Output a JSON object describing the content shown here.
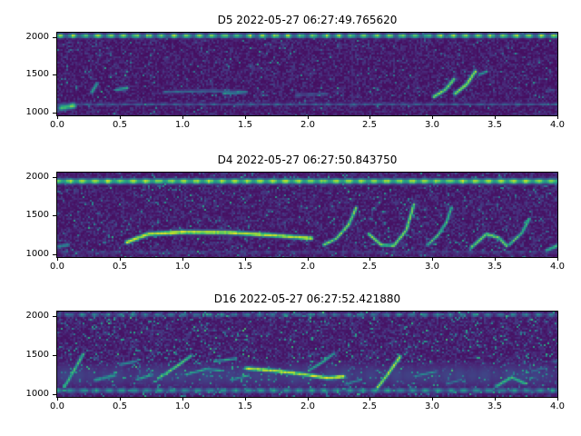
{
  "figure": {
    "background": "#ffffff",
    "colormap": "viridis",
    "palette": {
      "low": "#440154",
      "mid": "#21918c",
      "high": "#fde725"
    }
  },
  "chart_data": [
    {
      "type": "heatmap",
      "subtype": "spectrogram",
      "title": "D5 2022-05-27 06:27:49.765620",
      "xlabel": "",
      "ylabel": "",
      "xlim": [
        0.0,
        4.0
      ],
      "ylim": [
        960,
        2060
      ],
      "x_ticks": [
        0.0,
        0.5,
        1.0,
        1.5,
        2.0,
        2.5,
        3.0,
        3.5,
        4.0
      ],
      "x_tick_labels": [
        "0.0",
        "0.5",
        "1.0",
        "1.5",
        "2.0",
        "2.5",
        "3.0",
        "3.5",
        "4.0"
      ],
      "y_ticks": [
        2000,
        1500,
        1000
      ],
      "y_tick_labels": [
        "2000",
        "1500",
        "1000"
      ],
      "grid": false,
      "legend": false,
      "noise": {
        "base": 0.045,
        "speckle_prob": 0.05,
        "speckle_amp": 0.4,
        "seed": 11
      },
      "features": [
        {
          "points": [
            [
              0,
              2030
            ],
            [
              4,
              2030
            ]
          ],
          "sigma_hz": 22,
          "amp": 0.85,
          "dash": 0.55
        },
        {
          "points": [
            [
              0,
              1130
            ],
            [
              4,
              1130
            ]
          ],
          "sigma_hz": 12,
          "amp": 0.38,
          "dash": 0.45
        },
        {
          "points": [
            [
              0.02,
              1080
            ],
            [
              0.12,
              1110
            ]
          ],
          "sigma_hz": 30,
          "amp": 0.75,
          "dash": 0
        },
        {
          "points": [
            [
              0.27,
              1290
            ],
            [
              0.31,
              1400
            ]
          ],
          "sigma_hz": 18,
          "amp": 0.6,
          "dash": 0
        },
        {
          "points": [
            [
              0.47,
              1320
            ],
            [
              0.55,
              1345
            ]
          ],
          "sigma_hz": 18,
          "amp": 0.6,
          "dash": 0
        },
        {
          "points": [
            [
              0.85,
              1290
            ],
            [
              1.2,
              1305
            ],
            [
              1.5,
              1295
            ]
          ],
          "sigma_hz": 13,
          "amp": 0.42,
          "dash": 0.2
        },
        {
          "points": [
            [
              1.32,
              1270
            ],
            [
              1.5,
              1290
            ]
          ],
          "sigma_hz": 15,
          "amp": 0.55,
          "dash": 0
        },
        {
          "points": [
            [
              1.9,
              1255
            ],
            [
              2.15,
              1265
            ]
          ],
          "sigma_hz": 12,
          "amp": 0.35,
          "dash": 0.3
        },
        {
          "points": [
            [
              2.35,
              1100
            ],
            [
              2.35,
              1950
            ]
          ],
          "sigma_hz": 14,
          "amp": 0.2,
          "dash": 0.6
        },
        {
          "points": [
            [
              3.0,
              1230
            ],
            [
              3.09,
              1320
            ],
            [
              3.16,
              1460
            ]
          ],
          "sigma_hz": 19,
          "amp": 0.8,
          "dash": 0
        },
        {
          "points": [
            [
              3.17,
              1270
            ],
            [
              3.26,
              1390
            ],
            [
              3.33,
              1560
            ]
          ],
          "sigma_hz": 19,
          "amp": 0.85,
          "dash": 0
        },
        {
          "points": [
            [
              3.36,
              1520
            ],
            [
              3.42,
              1560
            ]
          ],
          "sigma_hz": 16,
          "amp": 0.55,
          "dash": 0
        },
        {
          "points": [
            [
              3.9,
              1300
            ],
            [
              3.95,
              1320
            ]
          ],
          "sigma_hz": 14,
          "amp": 0.3,
          "dash": 0
        }
      ]
    },
    {
      "type": "heatmap",
      "subtype": "spectrogram",
      "title": "D4 2022-05-27 06:27:50.843750",
      "xlabel": "",
      "ylabel": "",
      "xlim": [
        0.0,
        4.0
      ],
      "ylim": [
        960,
        2060
      ],
      "x_ticks": [
        0.0,
        0.5,
        1.0,
        1.5,
        2.0,
        2.5,
        3.0,
        3.5,
        4.0
      ],
      "x_tick_labels": [
        "0.0",
        "0.5",
        "1.0",
        "1.5",
        "2.0",
        "2.5",
        "3.0",
        "3.5",
        "4.0"
      ],
      "y_ticks": [
        2000,
        1500,
        1000
      ],
      "y_tick_labels": [
        "2000",
        "1500",
        "1000"
      ],
      "grid": false,
      "legend": false,
      "noise": {
        "base": 0.05,
        "speckle_prob": 0.08,
        "speckle_amp": 0.45,
        "seed": 22
      },
      "features": [
        {
          "points": [
            [
              0,
              1960
            ],
            [
              4,
              1960
            ]
          ],
          "sigma_hz": 26,
          "amp": 0.9,
          "dash": 0.35
        },
        {
          "points": [
            [
              0.55,
              1175
            ],
            [
              0.72,
              1280
            ],
            [
              1.0,
              1305
            ],
            [
              1.35,
              1300
            ],
            [
              1.7,
              1265
            ],
            [
              2.02,
              1225
            ]
          ],
          "sigma_hz": 21,
          "amp": 0.95,
          "dash": 0
        },
        {
          "points": [
            [
              2.12,
              1140
            ],
            [
              2.22,
              1220
            ],
            [
              2.32,
              1400
            ],
            [
              2.38,
              1620
            ]
          ],
          "sigma_hz": 17,
          "amp": 0.8,
          "dash": 0
        },
        {
          "points": [
            [
              2.48,
              1280
            ],
            [
              2.58,
              1140
            ],
            [
              2.68,
              1130
            ],
            [
              2.78,
              1330
            ],
            [
              2.84,
              1660
            ]
          ],
          "sigma_hz": 17,
          "amp": 0.82,
          "dash": 0
        },
        {
          "points": [
            [
              2.95,
              1140
            ],
            [
              3.03,
              1260
            ],
            [
              3.1,
              1430
            ],
            [
              3.14,
              1620
            ]
          ],
          "sigma_hz": 16,
          "amp": 0.7,
          "dash": 0
        },
        {
          "points": [
            [
              3.3,
              1110
            ],
            [
              3.42,
              1280
            ],
            [
              3.52,
              1230
            ],
            [
              3.58,
              1130
            ]
          ],
          "sigma_hz": 18,
          "amp": 0.78,
          "dash": 0
        },
        {
          "points": [
            [
              3.6,
              1140
            ],
            [
              3.7,
              1290
            ],
            [
              3.76,
              1470
            ]
          ],
          "sigma_hz": 16,
          "amp": 0.72,
          "dash": 0
        },
        {
          "points": [
            [
              3.9,
              1070
            ],
            [
              4.0,
              1140
            ]
          ],
          "sigma_hz": 18,
          "amp": 0.7,
          "dash": 0
        },
        {
          "points": [
            [
              0,
              1045
            ],
            [
              4,
              1045
            ]
          ],
          "sigma_hz": 14,
          "amp": 0.3,
          "dash": 0.6
        },
        {
          "points": [
            [
              0.0,
              1120
            ],
            [
              0.08,
              1140
            ]
          ],
          "sigma_hz": 20,
          "amp": 0.5,
          "dash": 0
        },
        {
          "points": [
            [
              2.3,
              1100
            ],
            [
              2.3,
              1900
            ]
          ],
          "sigma_hz": 12,
          "amp": 0.15,
          "dash": 0.7
        }
      ]
    },
    {
      "type": "heatmap",
      "subtype": "spectrogram",
      "title": "D16 2022-05-27 06:27:52.421880",
      "xlabel": "",
      "ylabel": "",
      "xlim": [
        0.0,
        4.0
      ],
      "ylim": [
        960,
        2060
      ],
      "x_ticks": [
        0.0,
        0.5,
        1.0,
        1.5,
        2.0,
        2.5,
        3.0,
        3.5,
        4.0
      ],
      "x_tick_labels": [
        "0.0",
        "0.5",
        "1.0",
        "1.5",
        "2.0",
        "2.5",
        "3.0",
        "3.5",
        "4.0"
      ],
      "y_ticks": [
        2000,
        1500,
        1000
      ],
      "y_tick_labels": [
        "2000",
        "1500",
        "1000"
      ],
      "grid": false,
      "legend": false,
      "noise": {
        "base": 0.055,
        "speckle_prob": 0.13,
        "speckle_amp": 0.5,
        "seed": 33
      },
      "features": [
        {
          "points": [
            [
              0,
              2030
            ],
            [
              4,
              2030
            ]
          ],
          "sigma_hz": 20,
          "amp": 0.5,
          "dash": 0.7
        },
        {
          "points": [
            [
              0,
              1055
            ],
            [
              4,
              1055
            ]
          ],
          "sigma_hz": 26,
          "amp": 0.55,
          "dash": 0.5
        },
        {
          "points": [
            [
              0,
              1250
            ],
            [
              4,
              1250
            ]
          ],
          "sigma_hz": 130,
          "amp": 0.2,
          "dash": 0.85
        },
        {
          "points": [
            [
              0.05,
              1100
            ],
            [
              0.13,
              1320
            ],
            [
              0.2,
              1520
            ]
          ],
          "sigma_hz": 17,
          "amp": 0.7,
          "dash": 0
        },
        {
          "points": [
            [
              0.3,
              1190
            ],
            [
              0.45,
              1250
            ]
          ],
          "sigma_hz": 22,
          "amp": 0.55,
          "dash": 0
        },
        {
          "points": [
            [
              0.5,
              1390
            ],
            [
              0.62,
              1430
            ]
          ],
          "sigma_hz": 16,
          "amp": 0.5,
          "dash": 0
        },
        {
          "points": [
            [
              0.63,
              1200
            ],
            [
              0.75,
              1255
            ]
          ],
          "sigma_hz": 16,
          "amp": 0.6,
          "dash": 0
        },
        {
          "points": [
            [
              0.8,
              1210
            ],
            [
              0.95,
              1370
            ],
            [
              1.06,
              1500
            ]
          ],
          "sigma_hz": 17,
          "amp": 0.75,
          "dash": 0
        },
        {
          "points": [
            [
              1.02,
              1260
            ],
            [
              1.18,
              1330
            ],
            [
              1.32,
              1310
            ]
          ],
          "sigma_hz": 15,
          "amp": 0.6,
          "dash": 0
        },
        {
          "points": [
            [
              1.25,
              1430
            ],
            [
              1.42,
              1465
            ]
          ],
          "sigma_hz": 14,
          "amp": 0.6,
          "dash": 0
        },
        {
          "points": [
            [
              1.38,
              1190
            ],
            [
              1.52,
              1250
            ]
          ],
          "sigma_hz": 14,
          "amp": 0.55,
          "dash": 0
        },
        {
          "points": [
            [
              1.5,
              1340
            ],
            [
              1.72,
              1310
            ],
            [
              1.95,
              1265
            ],
            [
              2.15,
              1215
            ],
            [
              2.28,
              1235
            ]
          ],
          "sigma_hz": 20,
          "amp": 0.95,
          "dash": 0
        },
        {
          "points": [
            [
              2.0,
              1310
            ],
            [
              2.12,
              1430
            ],
            [
              2.2,
              1530
            ]
          ],
          "sigma_hz": 15,
          "amp": 0.65,
          "dash": 0
        },
        {
          "points": [
            [
              2.3,
              1140
            ],
            [
              2.42,
              1195
            ]
          ],
          "sigma_hz": 15,
          "amp": 0.5,
          "dash": 0
        },
        {
          "points": [
            [
              2.55,
              1090
            ],
            [
              2.63,
              1260
            ],
            [
              2.73,
              1490
            ]
          ],
          "sigma_hz": 18,
          "amp": 0.88,
          "dash": 0
        },
        {
          "points": [
            [
              2.85,
              1240
            ],
            [
              3.02,
              1300
            ]
          ],
          "sigma_hz": 15,
          "amp": 0.5,
          "dash": 0
        },
        {
          "points": [
            [
              3.1,
              1140
            ],
            [
              3.22,
              1195
            ]
          ],
          "sigma_hz": 14,
          "amp": 0.45,
          "dash": 0
        },
        {
          "points": [
            [
              3.5,
              1110
            ],
            [
              3.62,
              1225
            ],
            [
              3.72,
              1150
            ]
          ],
          "sigma_hz": 18,
          "amp": 0.68,
          "dash": 0
        },
        {
          "points": [
            [
              3.78,
              1300
            ],
            [
              3.88,
              1345
            ]
          ],
          "sigma_hz": 13,
          "amp": 0.4,
          "dash": 0
        },
        {
          "points": [
            [
              3.95,
              1420
            ],
            [
              4.0,
              1450
            ]
          ],
          "sigma_hz": 13,
          "amp": 0.35,
          "dash": 0
        }
      ]
    }
  ]
}
